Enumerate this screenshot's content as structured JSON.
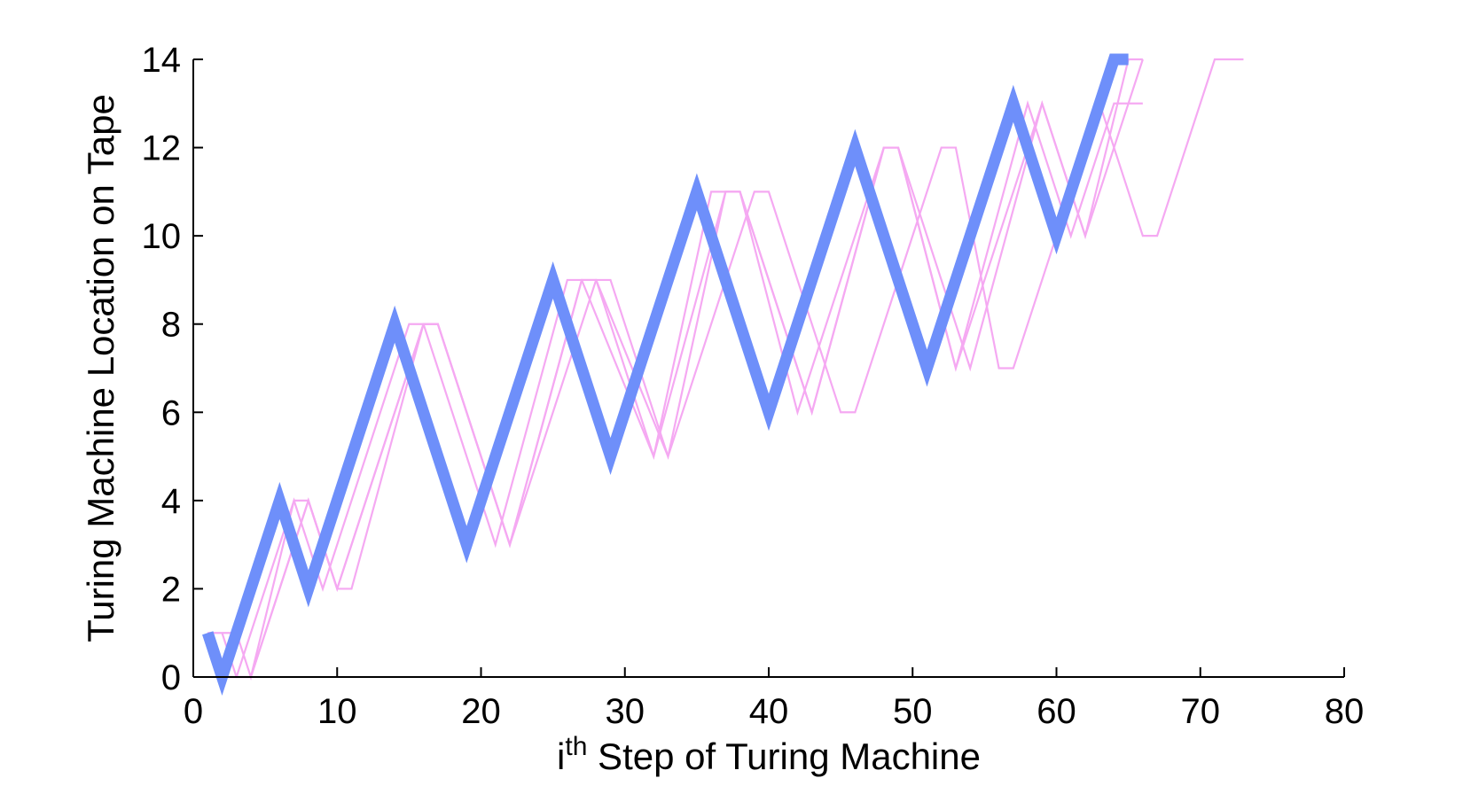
{
  "chart_data": {
    "type": "line",
    "xlabel_base": "i",
    "xlabel_sup": "th",
    "xlabel_rest": " Step of Turing Machine",
    "ylabel": "Turing Machine Location on Tape",
    "xlim": [
      0,
      80
    ],
    "ylim": [
      0,
      14
    ],
    "xticks": [
      0,
      10,
      20,
      30,
      40,
      50,
      60,
      70,
      80
    ],
    "yticks": [
      0,
      2,
      4,
      6,
      8,
      10,
      12,
      14
    ],
    "grid": false,
    "legend": "none",
    "series": [
      {
        "role": "trace",
        "color": "#f5a9f2",
        "points": [
          [
            1,
            1
          ],
          [
            3,
            1
          ],
          [
            4,
            0
          ],
          [
            7,
            4
          ],
          [
            8,
            4
          ],
          [
            10,
            2
          ],
          [
            16,
            8
          ],
          [
            17,
            8
          ],
          [
            22,
            3
          ],
          [
            27,
            9
          ],
          [
            28,
            9
          ],
          [
            33,
            5
          ],
          [
            37,
            11
          ],
          [
            38,
            11
          ],
          [
            43,
            6
          ],
          [
            48,
            12
          ],
          [
            49,
            12
          ],
          [
            54,
            7
          ],
          [
            59,
            13
          ],
          [
            62,
            10
          ],
          [
            65,
            14
          ],
          [
            66,
            14
          ]
        ]
      },
      {
        "role": "trace",
        "color": "#f5a9f2",
        "points": [
          [
            1,
            1
          ],
          [
            2,
            0
          ],
          [
            3,
            0
          ],
          [
            7,
            4
          ],
          [
            9,
            2
          ],
          [
            15,
            8
          ],
          [
            16,
            8
          ],
          [
            21,
            3
          ],
          [
            26,
            9
          ],
          [
            27,
            9
          ],
          [
            32,
            5
          ],
          [
            36,
            11
          ],
          [
            38,
            11
          ],
          [
            42,
            6
          ],
          [
            48,
            12
          ],
          [
            49,
            12
          ],
          [
            53,
            7
          ],
          [
            58,
            13
          ],
          [
            61,
            10
          ],
          [
            64,
            13
          ],
          [
            66,
            13
          ]
        ]
      },
      {
        "role": "trace",
        "color": "#f5a9f2",
        "points": [
          [
            2,
            0
          ],
          [
            4,
            0
          ],
          [
            8,
            4
          ],
          [
            10,
            2
          ],
          [
            11,
            2
          ],
          [
            16,
            8
          ],
          [
            17,
            8
          ],
          [
            22,
            3
          ],
          [
            28,
            9
          ],
          [
            29,
            9
          ],
          [
            33,
            5
          ],
          [
            39,
            11
          ],
          [
            40,
            11
          ],
          [
            45,
            6
          ],
          [
            46,
            6
          ],
          [
            52,
            12
          ],
          [
            53,
            12
          ],
          [
            56,
            7
          ],
          [
            57,
            7
          ],
          [
            63,
            13
          ],
          [
            66,
            10
          ],
          [
            67,
            10
          ],
          [
            71,
            14
          ],
          [
            73,
            14
          ]
        ]
      },
      {
        "role": "trace",
        "color": "#f5a9f2",
        "points": [
          [
            2,
            1
          ],
          [
            3,
            0
          ],
          [
            4,
            0
          ],
          [
            8,
            4
          ],
          [
            10,
            2
          ],
          [
            16,
            8
          ],
          [
            17,
            8
          ],
          [
            22,
            3
          ],
          [
            27,
            9
          ],
          [
            28,
            9
          ],
          [
            32,
            5
          ],
          [
            37,
            11
          ],
          [
            38,
            11
          ],
          [
            43,
            6
          ],
          [
            48,
            12
          ],
          [
            49,
            12
          ],
          [
            53,
            7
          ],
          [
            59,
            13
          ],
          [
            62,
            10
          ],
          [
            66,
            14
          ]
        ]
      },
      {
        "role": "main",
        "color": "#6e8ffa",
        "points": [
          [
            1,
            1
          ],
          [
            2,
            0
          ],
          [
            6,
            4
          ],
          [
            8,
            2
          ],
          [
            14,
            8
          ],
          [
            19,
            3
          ],
          [
            25,
            9
          ],
          [
            29,
            5
          ],
          [
            35,
            11
          ],
          [
            40,
            6
          ],
          [
            46,
            12
          ],
          [
            51,
            7
          ],
          [
            57,
            13
          ],
          [
            60,
            10
          ],
          [
            64,
            14
          ],
          [
            65,
            14
          ]
        ]
      }
    ]
  }
}
